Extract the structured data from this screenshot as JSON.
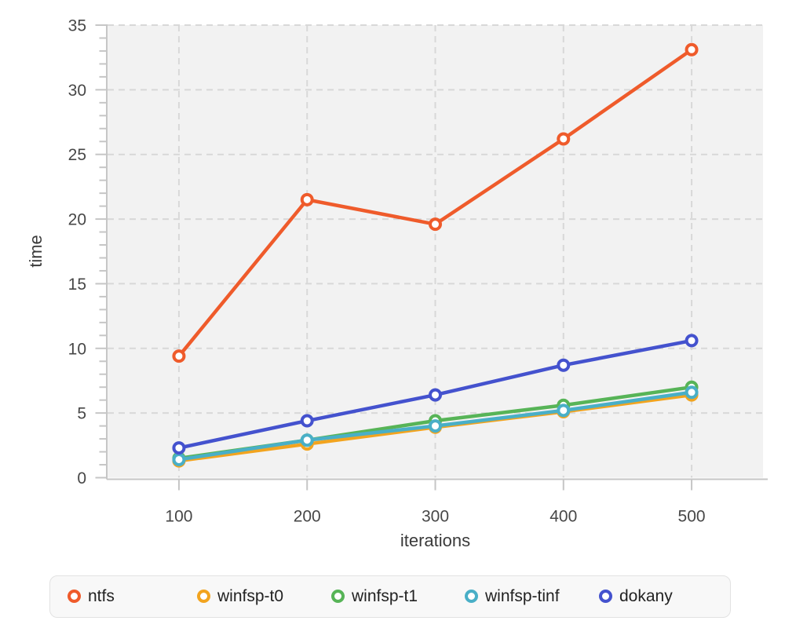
{
  "chart_data": {
    "type": "line",
    "title": "",
    "xlabel": "iterations",
    "ylabel": "time",
    "x": [
      100,
      200,
      300,
      400,
      500
    ],
    "series": [
      {
        "name": "ntfs",
        "color": "#EF5B2B",
        "values": [
          9.4,
          21.5,
          19.6,
          26.2,
          33.1
        ]
      },
      {
        "name": "winfsp-t0",
        "color": "#F2A41F",
        "values": [
          1.3,
          2.6,
          3.9,
          5.1,
          6.4
        ]
      },
      {
        "name": "winfsp-t1",
        "color": "#57B457",
        "values": [
          1.5,
          2.9,
          4.4,
          5.6,
          7.0
        ]
      },
      {
        "name": "winfsp-tinf",
        "color": "#49AFC7",
        "values": [
          1.4,
          2.9,
          4.0,
          5.2,
          6.6
        ]
      },
      {
        "name": "dokany",
        "color": "#4452CE",
        "values": [
          2.3,
          4.4,
          6.4,
          8.7,
          10.6
        ]
      }
    ],
    "xticks": [
      "100",
      "200",
      "300",
      "400",
      "500"
    ],
    "yticks": [
      "0",
      "5",
      "10",
      "15",
      "20",
      "25",
      "30",
      "35"
    ],
    "ytick_values": [
      0,
      5,
      10,
      15,
      20,
      25,
      30,
      35
    ],
    "xtick_values": [
      100,
      200,
      300,
      400,
      500
    ],
    "xlim": [
      44.3,
      555.7
    ],
    "ylim": [
      0,
      35
    ],
    "grid": true,
    "legend_position": "bottom",
    "panel_color": "#f2f2f2",
    "grid_color": "#d8d8d8",
    "axis_color": "#c6c6c6",
    "tick_label_color": "#474747",
    "marker_style": "open-circle"
  }
}
